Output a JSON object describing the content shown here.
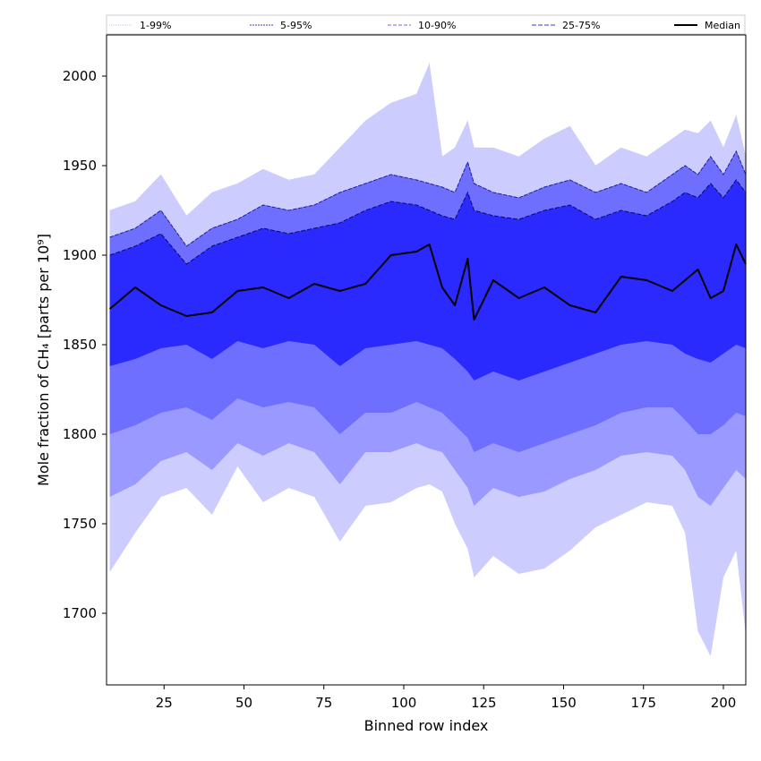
{
  "chart_data": {
    "type": "area",
    "xlabel": "Binned row index",
    "ylabel": "Mole fraction of CH₄ [parts per 10⁹]",
    "xlim": [
      7,
      207
    ],
    "ylim": [
      1660,
      2023
    ],
    "xticks": [
      25,
      50,
      75,
      100,
      125,
      150,
      175,
      200
    ],
    "yticks": [
      1700,
      1750,
      1800,
      1850,
      1900,
      1950,
      2000
    ],
    "x": [
      8,
      16,
      24,
      32,
      40,
      48,
      56,
      64,
      72,
      80,
      88,
      96,
      104,
      108,
      112,
      116,
      120,
      122,
      128,
      136,
      144,
      152,
      160,
      168,
      176,
      184,
      188,
      192,
      196,
      200,
      204,
      207
    ],
    "legend": {
      "placement": "top",
      "entries": [
        "1-99%",
        "5-95%",
        "10-90%",
        "25-75%",
        "Median"
      ]
    },
    "colors": {
      "band_1_99": "#ccccff",
      "band_5_95": "#9999ff",
      "band_10_90": "#6f6fff",
      "band_25_75": "#2a2aff",
      "line_1_99": "#c8c8e8",
      "line_5_95": "#3a3ab0",
      "line_10_90": "#1f1f9a",
      "line_25_75": "#0a0a60",
      "median": "#000000"
    },
    "series": [
      {
        "name": "1-99%",
        "lower": [
          1723,
          1745,
          1765,
          1770,
          1755,
          1782,
          1762,
          1770,
          1765,
          1740,
          1760,
          1762,
          1770,
          1772,
          1768,
          1750,
          1736,
          1720,
          1732,
          1722,
          1725,
          1735,
          1748,
          1755,
          1762,
          1760,
          1745,
          1690,
          1676,
          1720,
          1735,
          1688
        ],
        "upper": [
          1925,
          1930,
          1945,
          1922,
          1935,
          1940,
          1948,
          1942,
          1945,
          1960,
          1975,
          1985,
          1990,
          2007,
          1955,
          1960,
          1975,
          1960,
          1960,
          1955,
          1965,
          1972,
          1950,
          1960,
          1955,
          1965,
          1970,
          1968,
          1975,
          1960,
          1978,
          1955
        ]
      },
      {
        "name": "5-95%",
        "lower": [
          1765,
          1772,
          1785,
          1790,
          1780,
          1795,
          1788,
          1795,
          1790,
          1772,
          1790,
          1790,
          1795,
          1792,
          1790,
          1780,
          1770,
          1760,
          1770,
          1765,
          1768,
          1775,
          1780,
          1788,
          1790,
          1788,
          1780,
          1765,
          1760,
          1770,
          1780,
          1775
        ]
      },
      {
        "name": "10-90%",
        "lower": [
          1800,
          1805,
          1812,
          1815,
          1808,
          1820,
          1815,
          1818,
          1815,
          1800,
          1812,
          1812,
          1818,
          1815,
          1812,
          1805,
          1798,
          1790,
          1795,
          1790,
          1795,
          1800,
          1805,
          1812,
          1815,
          1815,
          1808,
          1800,
          1800,
          1805,
          1812,
          1810
        ],
        "upper": [
          1910,
          1915,
          1925,
          1905,
          1915,
          1920,
          1928,
          1925,
          1928,
          1935,
          1940,
          1945,
          1942,
          1940,
          1938,
          1935,
          1952,
          1940,
          1935,
          1932,
          1938,
          1942,
          1935,
          1940,
          1935,
          1945,
          1950,
          1945,
          1955,
          1945,
          1958,
          1945
        ]
      },
      {
        "name": "25-75%",
        "lower": [
          1838,
          1842,
          1848,
          1850,
          1842,
          1852,
          1848,
          1852,
          1850,
          1838,
          1848,
          1850,
          1852,
          1850,
          1848,
          1842,
          1835,
          1830,
          1835,
          1830,
          1835,
          1840,
          1845,
          1850,
          1852,
          1850,
          1845,
          1842,
          1840,
          1845,
          1850,
          1848
        ],
        "upper": [
          1900,
          1905,
          1912,
          1895,
          1905,
          1910,
          1915,
          1912,
          1915,
          1918,
          1925,
          1930,
          1928,
          1925,
          1922,
          1920,
          1935,
          1925,
          1922,
          1920,
          1925,
          1928,
          1920,
          1925,
          1922,
          1930,
          1935,
          1932,
          1940,
          1932,
          1942,
          1935
        ]
      },
      {
        "name": "Median",
        "values": [
          1870,
          1882,
          1872,
          1866,
          1868,
          1880,
          1882,
          1876,
          1884,
          1880,
          1884,
          1900,
          1902,
          1906,
          1882,
          1872,
          1898,
          1864,
          1886,
          1876,
          1882,
          1872,
          1868,
          1888,
          1886,
          1880,
          1886,
          1892,
          1876,
          1880,
          1906,
          1895
        ]
      }
    ]
  }
}
